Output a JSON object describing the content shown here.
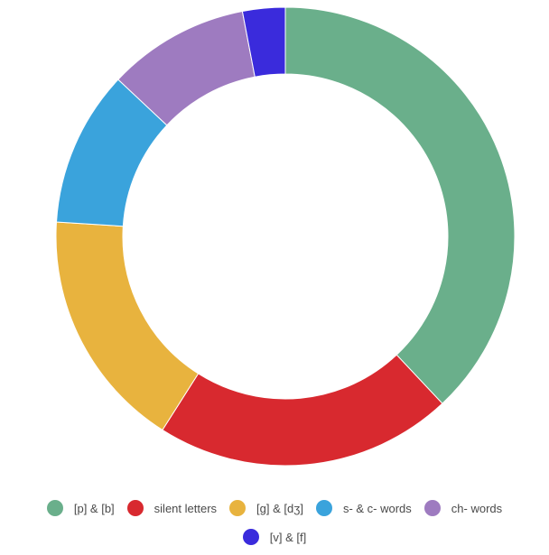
{
  "chart_data": {
    "type": "pie",
    "donut": true,
    "series": [
      {
        "name": "[p] & [b]",
        "value": 38,
        "color": "#6aaf8b"
      },
      {
        "name": "silent letters",
        "value": 21,
        "color": "#d8292f"
      },
      {
        "name": "[g] & [dʒ]",
        "value": 17,
        "color": "#e8b33e"
      },
      {
        "name": "s- & c- words",
        "value": 11,
        "color": "#3aa3dc"
      },
      {
        "name": "ch- words",
        "value": 10,
        "color": "#9e7bc0"
      },
      {
        "name": "[v] & [f]",
        "value": 3,
        "color": "#3a2bdc"
      }
    ],
    "legend_position": "bottom"
  }
}
